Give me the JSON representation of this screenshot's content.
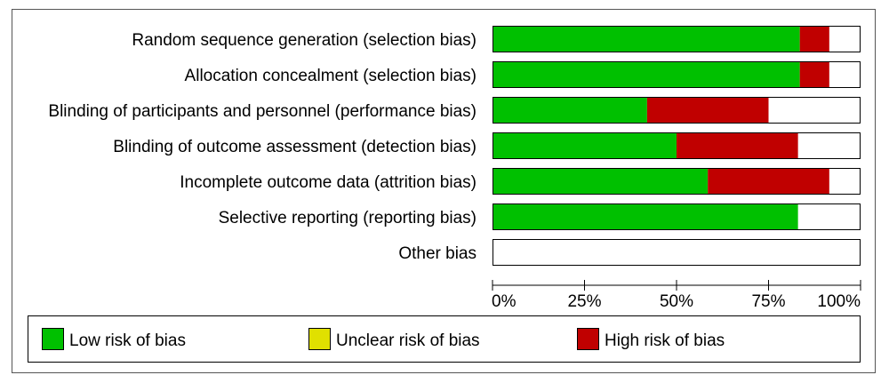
{
  "chart_data": {
    "type": "bar",
    "orientation": "horizontal",
    "stacked": true,
    "percent_scale": true,
    "title": "",
    "xlabel": "",
    "ylabel": "",
    "xlim": [
      0,
      100
    ],
    "grid": false,
    "legend_position": "bottom",
    "categories": [
      "Random sequence generation (selection bias)",
      "Allocation concealment (selection bias)",
      "Blinding of participants and personnel (performance bias)",
      "Blinding of outcome assessment (detection bias)",
      "Incomplete outcome data (attrition bias)",
      "Selective reporting (reporting bias)",
      "Other bias"
    ],
    "series": [
      {
        "name": "Low risk of bias",
        "color": "#00c000",
        "values": [
          83.5,
          83.5,
          42,
          50,
          58.5,
          83,
          0
        ]
      },
      {
        "name": "Unclear risk of bias",
        "color": "#e0e000",
        "values": [
          0,
          0,
          0,
          0,
          0,
          0,
          0
        ]
      },
      {
        "name": "High risk of bias",
        "color": "#c00000",
        "values": [
          8,
          8,
          33,
          33,
          33,
          0,
          0
        ]
      }
    ],
    "remainder_color": "#ffffff",
    "ticks": [
      0,
      25,
      50,
      75,
      100
    ],
    "tick_labels": [
      "0%",
      "25%",
      "50%",
      "75%",
      "100%"
    ]
  }
}
